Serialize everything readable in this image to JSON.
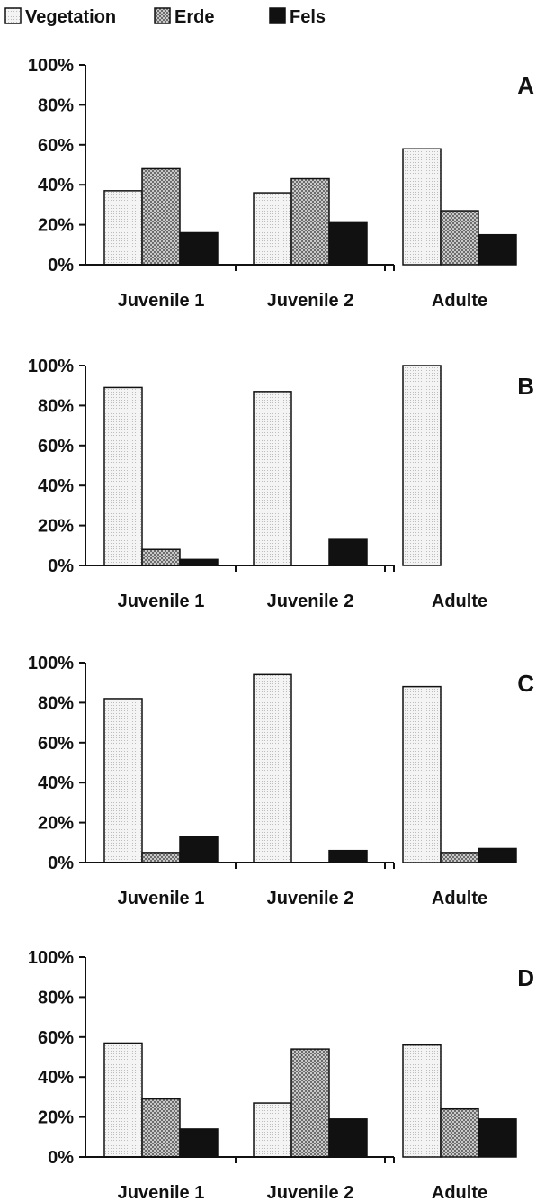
{
  "legend": {
    "placement": "top-left",
    "entries": [
      {
        "label": "Vegetation",
        "pattern": "vegetation-light-dots"
      },
      {
        "label": "Erde",
        "pattern": "erde-crosshatch"
      },
      {
        "label": "Fels",
        "pattern": "fels-solid-black"
      }
    ]
  },
  "colors": {
    "vegetation": "#f0f0f0",
    "erde": "#b8b8b8",
    "fels": "#111111",
    "axis": "#111111"
  },
  "chart_data": [
    {
      "type": "bar",
      "panel_label": "A",
      "categories": [
        "Juvenile 1",
        "Juvenile 2",
        "Adulte"
      ],
      "series": [
        {
          "name": "Vegetation",
          "values": [
            37,
            36,
            58
          ]
        },
        {
          "name": "Erde",
          "values": [
            48,
            43,
            27
          ]
        },
        {
          "name": "Fels",
          "values": [
            16,
            21,
            15
          ]
        }
      ],
      "ylim": [
        0,
        100
      ],
      "yticks": [
        "0%",
        "20%",
        "40%",
        "60%",
        "80%",
        "100%"
      ],
      "grid": false
    },
    {
      "type": "bar",
      "panel_label": "B",
      "categories": [
        "Juvenile 1",
        "Juvenile 2",
        "Adulte"
      ],
      "series": [
        {
          "name": "Vegetation",
          "values": [
            89,
            87,
            100
          ]
        },
        {
          "name": "Erde",
          "values": [
            8,
            0,
            0
          ]
        },
        {
          "name": "Fels",
          "values": [
            3,
            13,
            0
          ]
        }
      ],
      "ylim": [
        0,
        100
      ],
      "yticks": [
        "0%",
        "20%",
        "40%",
        "60%",
        "80%",
        "100%"
      ],
      "grid": false
    },
    {
      "type": "bar",
      "panel_label": "C",
      "categories": [
        "Juvenile 1",
        "Juvenile 2",
        "Adulte"
      ],
      "series": [
        {
          "name": "Vegetation",
          "values": [
            82,
            94,
            88
          ]
        },
        {
          "name": "Erde",
          "values": [
            5,
            0,
            5
          ]
        },
        {
          "name": "Fels",
          "values": [
            13,
            6,
            7
          ]
        }
      ],
      "ylim": [
        0,
        100
      ],
      "yticks": [
        "0%",
        "20%",
        "40%",
        "60%",
        "80%",
        "100%"
      ],
      "grid": false
    },
    {
      "type": "bar",
      "panel_label": "D",
      "categories": [
        "Juvenile 1",
        "Juvenile 2",
        "Adulte"
      ],
      "series": [
        {
          "name": "Vegetation",
          "values": [
            57,
            27,
            56
          ]
        },
        {
          "name": "Erde",
          "values": [
            29,
            54,
            24
          ]
        },
        {
          "name": "Fels",
          "values": [
            14,
            19,
            19
          ]
        }
      ],
      "ylim": [
        0,
        100
      ],
      "yticks": [
        "0%",
        "20%",
        "40%",
        "60%",
        "80%",
        "100%"
      ],
      "grid": false
    }
  ]
}
